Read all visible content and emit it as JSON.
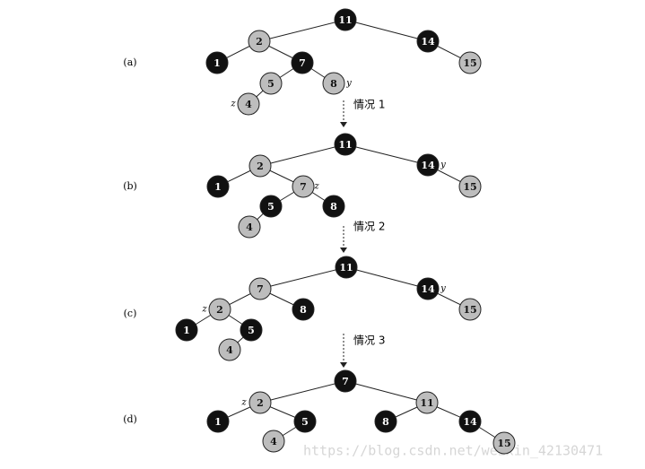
{
  "panels": [
    {
      "label": "(a)",
      "nodes": [
        {
          "label": "11",
          "color": "black"
        },
        {
          "label": "2",
          "color": "gray"
        },
        {
          "label": "14",
          "color": "black"
        },
        {
          "label": "1",
          "color": "black"
        },
        {
          "label": "7",
          "color": "black"
        },
        {
          "label": "15",
          "color": "gray"
        },
        {
          "label": "5",
          "color": "gray"
        },
        {
          "label": "8",
          "color": "gray"
        },
        {
          "label": "4",
          "color": "gray"
        }
      ],
      "annotations": [
        "y",
        "z"
      ],
      "case": "情况 1"
    },
    {
      "label": "(b)",
      "nodes": [
        {
          "label": "11",
          "color": "black"
        },
        {
          "label": "2",
          "color": "gray"
        },
        {
          "label": "14",
          "color": "black"
        },
        {
          "label": "1",
          "color": "black"
        },
        {
          "label": "7",
          "color": "gray"
        },
        {
          "label": "15",
          "color": "gray"
        },
        {
          "label": "5",
          "color": "black"
        },
        {
          "label": "8",
          "color": "black"
        },
        {
          "label": "4",
          "color": "gray"
        }
      ],
      "annotations": [
        "z",
        "y"
      ],
      "case": "情况 2"
    },
    {
      "label": "(c)",
      "nodes": [
        {
          "label": "11",
          "color": "black"
        },
        {
          "label": "7",
          "color": "gray"
        },
        {
          "label": "14",
          "color": "black"
        },
        {
          "label": "2",
          "color": "gray"
        },
        {
          "label": "8",
          "color": "black"
        },
        {
          "label": "15",
          "color": "gray"
        },
        {
          "label": "1",
          "color": "black"
        },
        {
          "label": "5",
          "color": "black"
        },
        {
          "label": "4",
          "color": "gray"
        }
      ],
      "annotations": [
        "z",
        "y"
      ],
      "case": "情况 3"
    },
    {
      "label": "(d)",
      "nodes": [
        {
          "label": "7",
          "color": "black"
        },
        {
          "label": "2",
          "color": "gray"
        },
        {
          "label": "11",
          "color": "gray"
        },
        {
          "label": "1",
          "color": "black"
        },
        {
          "label": "5",
          "color": "black"
        },
        {
          "label": "8",
          "color": "black"
        },
        {
          "label": "14",
          "color": "black"
        },
        {
          "label": "4",
          "color": "gray"
        },
        {
          "label": "15",
          "color": "gray"
        }
      ],
      "annotations": [
        "z"
      ]
    }
  ],
  "watermark": "https://blog.csdn.net/weixin_42130471"
}
